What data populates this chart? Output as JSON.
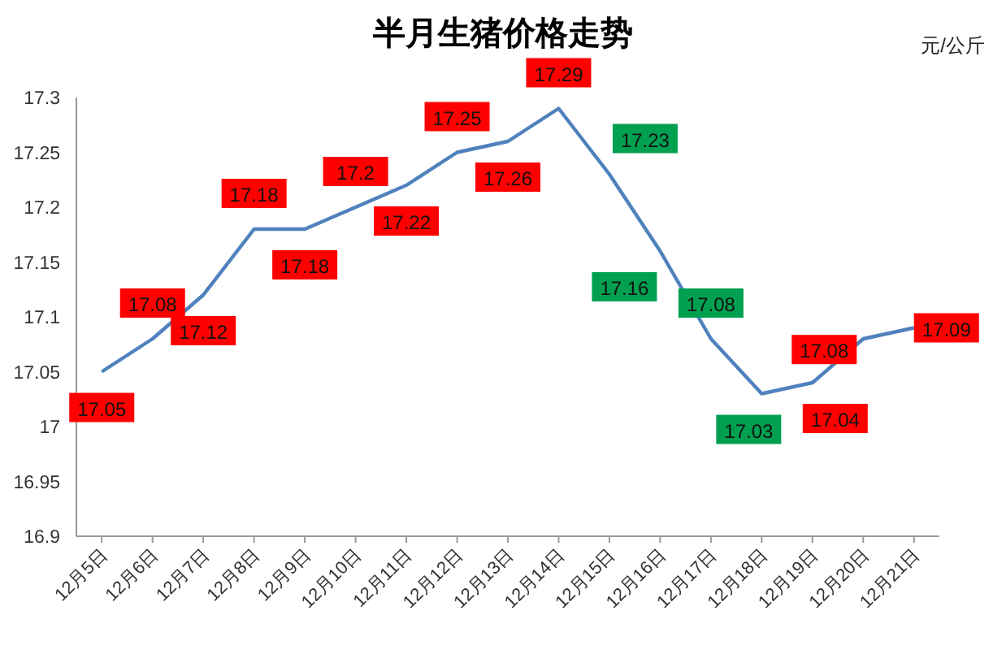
{
  "chart_data": {
    "type": "line",
    "title": "半月生猪价格走势",
    "annotations": [
      "元/公斤"
    ],
    "categories": [
      "12月5日",
      "12月6日",
      "12月7日",
      "12月8日",
      "12月9日",
      "12月10日",
      "12月11日",
      "12月12日",
      "12月13日",
      "12月14日",
      "12月15日",
      "12月16日",
      "12月17日",
      "12月18日",
      "12月19日",
      "12月20日",
      "12月21日"
    ],
    "series": [
      {
        "color": "#4f81bd",
        "values": [
          17.05,
          17.08,
          17.12,
          17.18,
          17.18,
          17.2,
          17.22,
          17.25,
          17.26,
          17.29,
          17.23,
          17.16,
          17.08,
          17.03,
          17.04,
          17.08,
          17.09
        ],
        "colors": [
          "#ff0000",
          "#ff0000",
          "#ff0000",
          "#ff0000",
          "#ff0000",
          "#ff0000",
          "#ff0000",
          "#ff0000",
          "#ff0000",
          "#ff0000",
          "#00a050",
          "#00a050",
          "#00a050",
          "#00a050",
          "#ff0000",
          "#ff0000",
          "#ff0000"
        ]
      }
    ],
    "ylim": [
      16.9,
      17.3
    ],
    "yticks": [
      16.9,
      16.95,
      17,
      17.05,
      17.1,
      17.15,
      17.2,
      17.25,
      17.3
    ],
    "grid": false,
    "marker": "none",
    "line_style": "solid",
    "data_labels": true
  }
}
